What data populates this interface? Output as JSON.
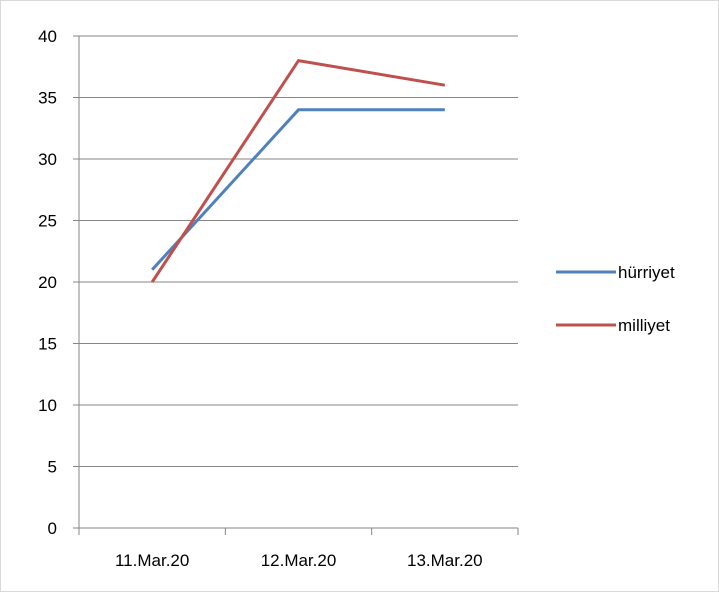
{
  "chart_data": {
    "type": "line",
    "categories": [
      "11.Mar.20",
      "12.Mar.20",
      "13.Mar.20"
    ],
    "series": [
      {
        "name": "hürriyet",
        "values": [
          21,
          34,
          34
        ],
        "color": "#4F81BD"
      },
      {
        "name": "milliyet",
        "values": [
          20,
          38,
          36
        ],
        "color": "#C0504D"
      }
    ],
    "ylim": [
      0,
      40
    ],
    "yticks": [
      0,
      5,
      10,
      15,
      20,
      25,
      30,
      35,
      40
    ],
    "grid": true,
    "legend_position": "right"
  }
}
